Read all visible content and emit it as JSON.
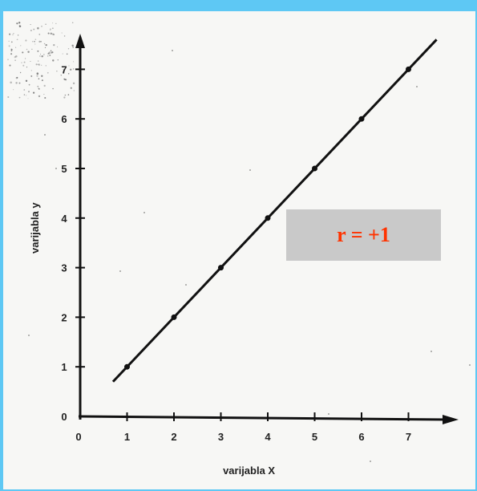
{
  "chart_data": {
    "type": "scatter",
    "xlabel": "varijabla X",
    "ylabel": "varijabla y",
    "x_ticks": [
      "0",
      "1",
      "2",
      "3",
      "4",
      "5",
      "6",
      "7"
    ],
    "y_ticks": [
      "0",
      "1",
      "2",
      "3",
      "4",
      "5",
      "6",
      "7"
    ],
    "xlim": [
      0,
      7.9
    ],
    "ylim": [
      0,
      7.6
    ],
    "points": [
      {
        "x": 1,
        "y": 1
      },
      {
        "x": 2,
        "y": 2
      },
      {
        "x": 3,
        "y": 3
      },
      {
        "x": 4,
        "y": 4
      },
      {
        "x": 5,
        "y": 5
      },
      {
        "x": 6,
        "y": 6
      },
      {
        "x": 7,
        "y": 7
      }
    ],
    "fit_line": {
      "x_start": 0.7,
      "x_end": 7.6,
      "slope": 1,
      "intercept": 0
    },
    "annotation": "r = +1",
    "grid": false,
    "annotation_color": "#ff3300"
  }
}
